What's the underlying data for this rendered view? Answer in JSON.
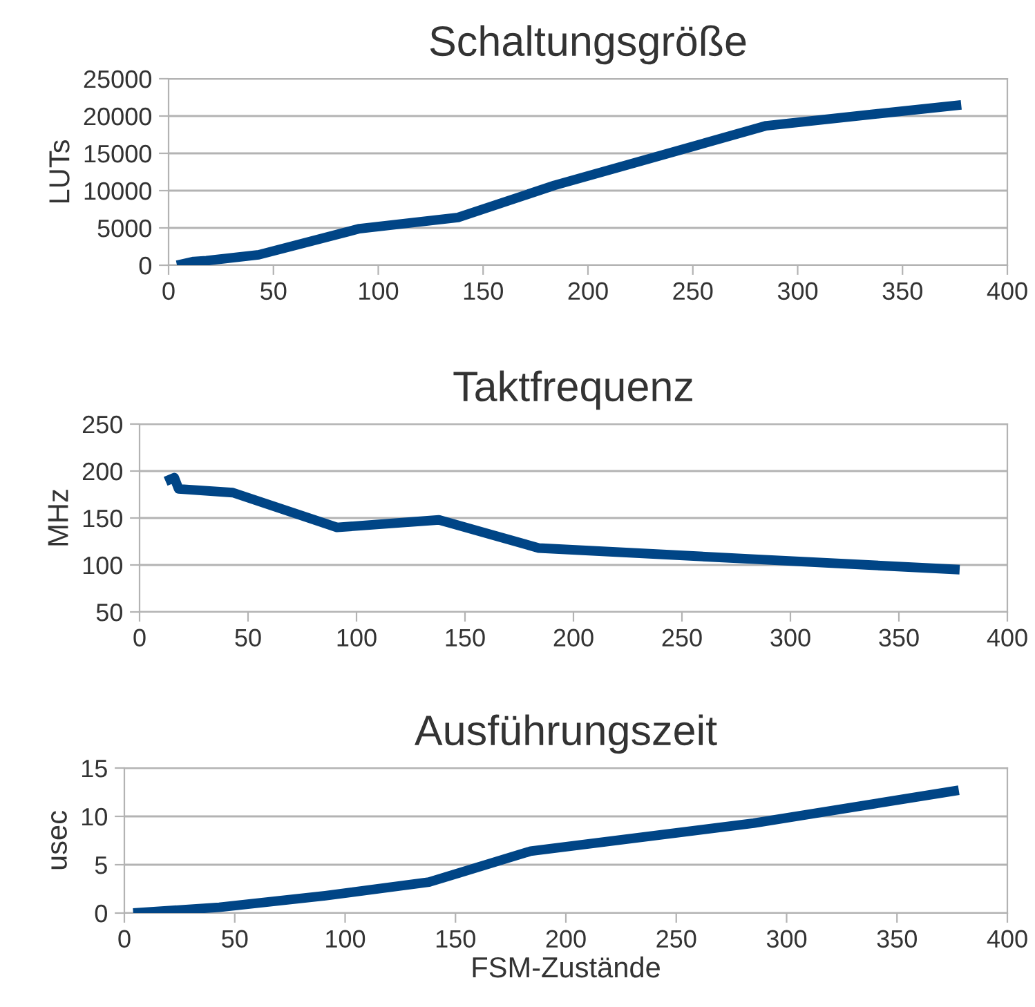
{
  "chart_data": [
    {
      "type": "line",
      "title": "Schaltungsgröße",
      "ylabel": "LUTs",
      "x": [
        4,
        12,
        18,
        43,
        91,
        138,
        184,
        285,
        378
      ],
      "series": [
        {
          "color": "#004586",
          "values": [
            0,
            500,
            600,
            1400,
            4900,
            6400,
            10700,
            18700,
            21500
          ]
        }
      ],
      "xlim": [
        0,
        400
      ],
      "xticks": [
        0,
        50,
        100,
        150,
        200,
        250,
        300,
        350,
        400
      ],
      "ylim": [
        0,
        25000
      ],
      "yticks": [
        0,
        5000,
        10000,
        15000,
        20000,
        25000
      ],
      "grid": "y",
      "legend": false,
      "marker": "none",
      "line_style": "solid"
    },
    {
      "type": "line",
      "title": "Taktfrequenz",
      "ylabel": "MHz",
      "x": [
        12,
        16,
        18,
        43,
        91,
        138,
        184,
        285,
        378
      ],
      "series": [
        {
          "color": "#004586",
          "values": [
            189,
            193,
            181,
            177,
            140,
            148,
            118,
            106,
            95
          ]
        }
      ],
      "xlim": [
        0,
        400
      ],
      "xticks": [
        0,
        50,
        100,
        150,
        200,
        250,
        300,
        350,
        400
      ],
      "ylim": [
        50,
        250
      ],
      "yticks": [
        50,
        100,
        150,
        200,
        250
      ],
      "grid": "y",
      "legend": false,
      "marker": "none",
      "line_style": "solid"
    },
    {
      "type": "line",
      "title": "Ausführungszeit",
      "ylabel": "usec",
      "xlabel": "FSM-Zustände",
      "x": [
        4,
        43,
        91,
        138,
        184,
        285,
        378
      ],
      "series": [
        {
          "color": "#004586",
          "values": [
            0,
            0.6,
            1.8,
            3.2,
            6.4,
            9.3,
            12.7
          ]
        }
      ],
      "xlim": [
        0,
        400
      ],
      "xticks": [
        0,
        50,
        100,
        150,
        200,
        250,
        300,
        350,
        400
      ],
      "ylim": [
        0,
        15
      ],
      "yticks": [
        0,
        5,
        10,
        15
      ],
      "grid": "y",
      "legend": false,
      "marker": "none",
      "line_style": "solid"
    }
  ]
}
